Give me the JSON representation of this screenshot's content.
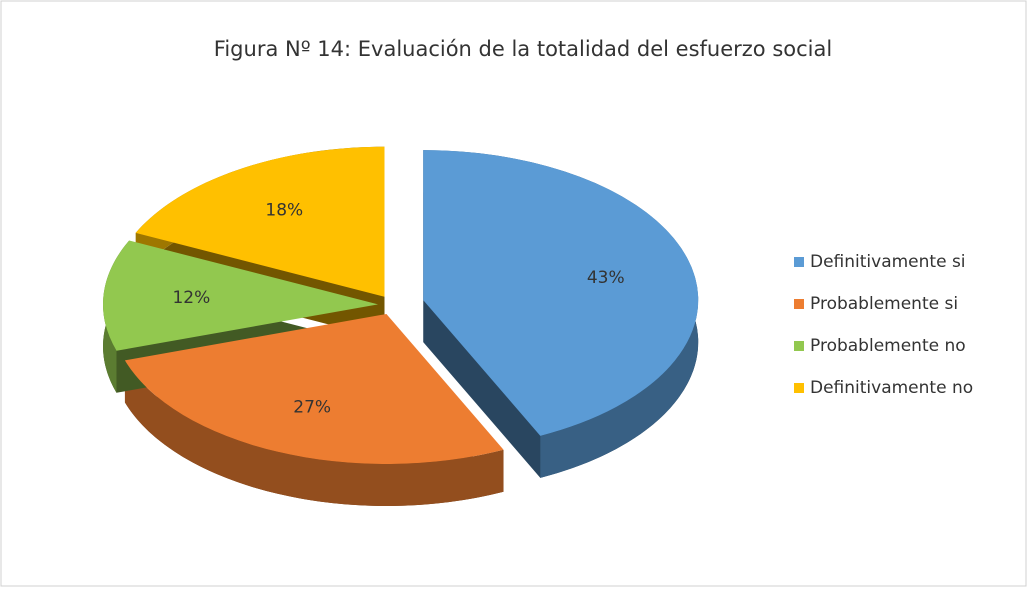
{
  "chart_data": {
    "type": "pie",
    "title": "Figura Nº  14: Evaluación de la totalidad del esfuerzo social",
    "categories": [
      "Definitivamente si",
      "Probablemente si",
      "Probablemente no",
      "Definitivamente no"
    ],
    "values": [
      43,
      27,
      12,
      18
    ],
    "value_labels": [
      "43%",
      "27%",
      "12%",
      "18%"
    ],
    "colors": [
      "#5b9bd5",
      "#ed7d31",
      "#92c84f",
      "#ffc000"
    ],
    "legend": "right"
  }
}
